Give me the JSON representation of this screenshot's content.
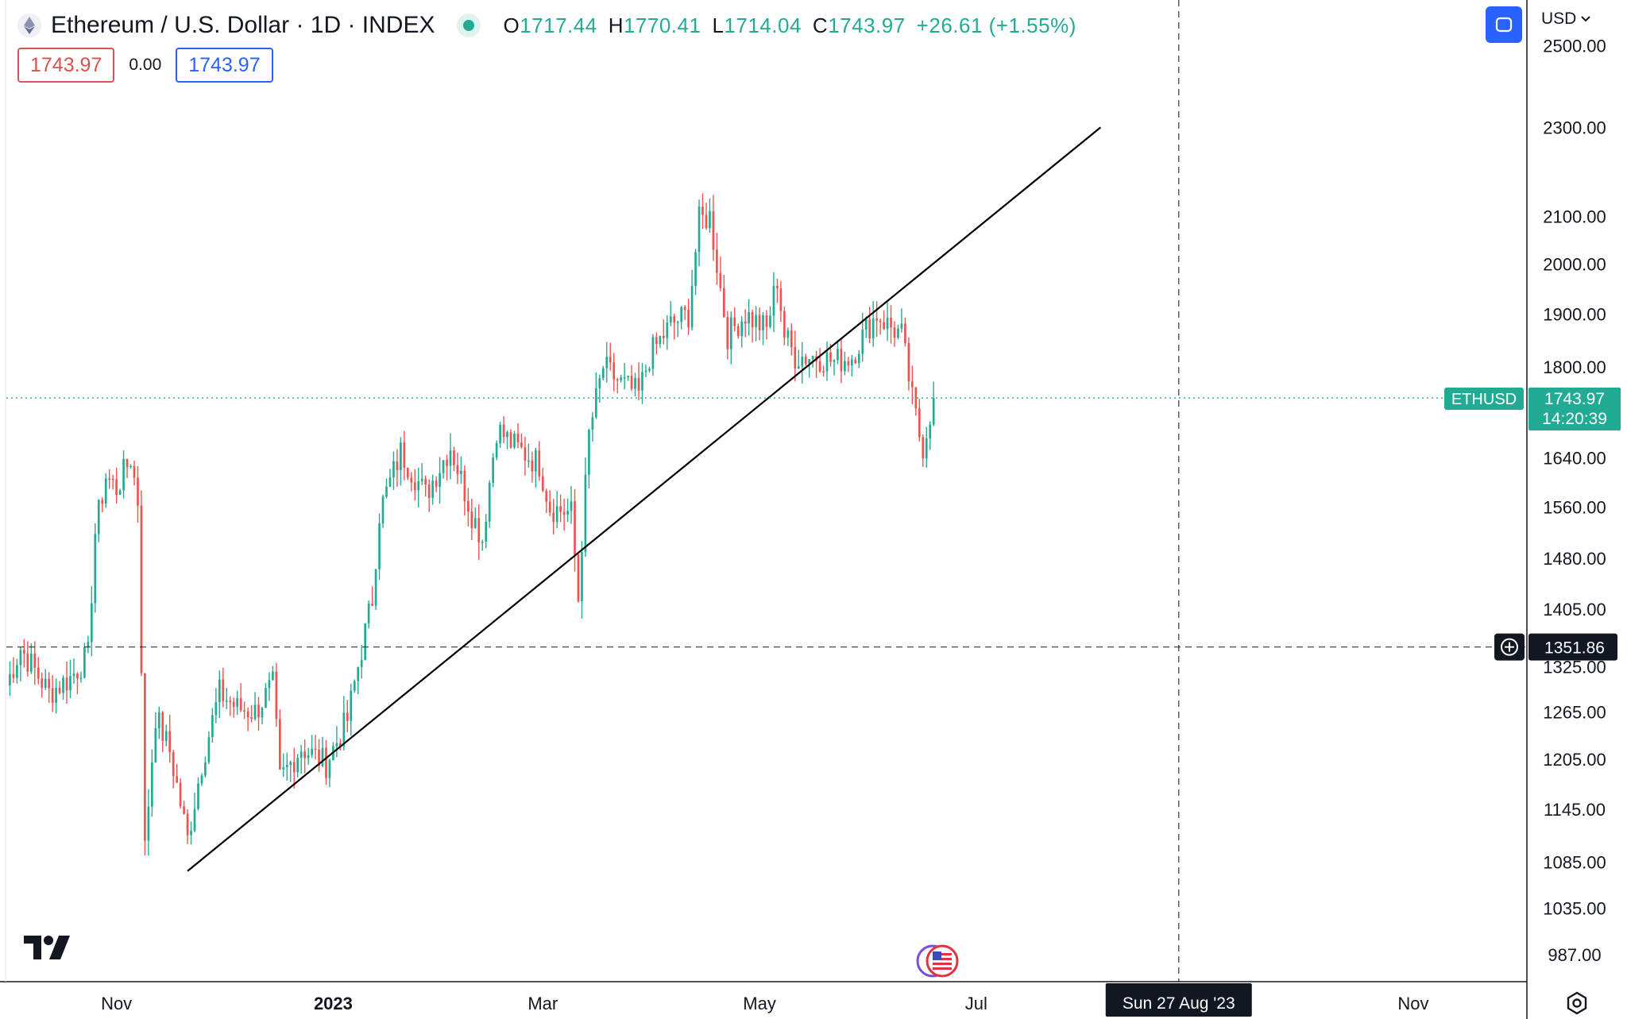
{
  "header": {
    "title": "Ethereum / U.S. Dollar · 1D · INDEX",
    "open_label": "O",
    "open": "1717.44",
    "high_label": "H",
    "high": "1770.41",
    "low_label": "L",
    "low": "1714.04",
    "close_label": "C",
    "close": "1743.97",
    "change": "+26.61 (+1.55%)"
  },
  "trade": {
    "sell_price": "1743.97",
    "spread": "0.00",
    "buy_price": "1743.97"
  },
  "currency_label": "USD",
  "colors": {
    "up": "#22ab94",
    "down": "#ef5350",
    "accent": "#2962ff",
    "crosshair": "#131722"
  },
  "icons": [
    "ethereum-icon",
    "fullscreen-icon",
    "chevron-down-icon",
    "tradingview-logo",
    "us-flag-icon",
    "settings-icon",
    "plus-circle-icon"
  ],
  "chart_data": {
    "type": "candlestick",
    "symbol": "ETHUSD",
    "interval": "1D",
    "scale": "log",
    "ylim": [
      960,
      2620
    ],
    "x_range": [
      "2022-10-01",
      "2023-12-03"
    ],
    "y_ticks": [
      "987.00",
      "1035.00",
      "1085.00",
      "1145.00",
      "1205.00",
      "1265.00",
      "1325.00",
      "1405.00",
      "1480.00",
      "1560.00",
      "1640.00",
      "1800.00",
      "1900.00",
      "2000.00",
      "2100.00",
      "2300.00",
      "2500.00"
    ],
    "x_ticks": [
      {
        "label": "Nov",
        "date": "2022-11-01"
      },
      {
        "label": "2023",
        "date": "2023-01-01"
      },
      {
        "label": "Mar",
        "date": "2023-03-01"
      },
      {
        "label": "May",
        "date": "2023-05-01"
      },
      {
        "label": "Jul",
        "date": "2023-07-01"
      },
      {
        "label": "Nov",
        "date": "2023-11-01"
      }
    ],
    "last_price": {
      "symbol_label": "ETHUSD",
      "price": "1743.97",
      "countdown": "14:20:39",
      "value": 1743.97
    },
    "crosshair": {
      "price_label": "1351.86",
      "price": 1351.86,
      "date_label": "Sun 27 Aug '23",
      "date": "2023-08-27"
    },
    "trendline": {
      "start": {
        "date": "2022-11-21",
        "price": 1075
      },
      "end": {
        "date": "2023-08-05",
        "price": 2300
      }
    },
    "anchors": [
      [
        "2022-10-01",
        1300
      ],
      [
        "2022-10-05",
        1350
      ],
      [
        "2022-10-09",
        1320
      ],
      [
        "2022-10-13",
        1290
      ],
      [
        "2022-10-19",
        1310
      ],
      [
        "2022-10-24",
        1340
      ],
      [
        "2022-10-26",
        1520
      ],
      [
        "2022-10-29",
        1610
      ],
      [
        "2022-11-01",
        1590
      ],
      [
        "2022-11-05",
        1640
      ],
      [
        "2022-11-07",
        1570
      ],
      [
        "2022-11-08",
        1330
      ],
      [
        "2022-11-09",
        1100
      ],
      [
        "2022-11-12",
        1260
      ],
      [
        "2022-11-16",
        1215
      ],
      [
        "2022-11-21",
        1110
      ],
      [
        "2022-11-25",
        1200
      ],
      [
        "2022-11-30",
        1290
      ],
      [
        "2022-12-05",
        1270
      ],
      [
        "2022-12-10",
        1265
      ],
      [
        "2022-12-15",
        1300
      ],
      [
        "2022-12-17",
        1180
      ],
      [
        "2022-12-23",
        1220
      ],
      [
        "2022-12-30",
        1200
      ],
      [
        "2023-01-05",
        1255
      ],
      [
        "2023-01-12",
        1420
      ],
      [
        "2023-01-14",
        1550
      ],
      [
        "2023-01-20",
        1650
      ],
      [
        "2023-01-27",
        1580
      ],
      [
        "2023-02-03",
        1660
      ],
      [
        "2023-02-09",
        1550
      ],
      [
        "2023-02-12",
        1510
      ],
      [
        "2023-02-16",
        1690
      ],
      [
        "2023-02-21",
        1660
      ],
      [
        "2023-02-28",
        1630
      ],
      [
        "2023-03-03",
        1560
      ],
      [
        "2023-03-09",
        1550
      ],
      [
        "2023-03-11",
        1420
      ],
      [
        "2023-03-14",
        1680
      ],
      [
        "2023-03-18",
        1800
      ],
      [
        "2023-03-23",
        1770
      ],
      [
        "2023-03-28",
        1750
      ],
      [
        "2023-03-31",
        1820
      ],
      [
        "2023-04-06",
        1880
      ],
      [
        "2023-04-11",
        1900
      ],
      [
        "2023-04-14",
        2090
      ],
      [
        "2023-04-17",
        2100
      ],
      [
        "2023-04-20",
        1950
      ],
      [
        "2023-04-22",
        1860
      ],
      [
        "2023-04-27",
        1900
      ],
      [
        "2023-05-03",
        1870
      ],
      [
        "2023-05-06",
        1970
      ],
      [
        "2023-05-08",
        1860
      ],
      [
        "2023-05-11",
        1820
      ],
      [
        "2023-05-17",
        1820
      ],
      [
        "2023-05-22",
        1810
      ],
      [
        "2023-05-27",
        1820
      ],
      [
        "2023-05-31",
        1870
      ],
      [
        "2023-06-03",
        1900
      ],
      [
        "2023-06-06",
        1880
      ],
      [
        "2023-06-10",
        1860
      ],
      [
        "2023-06-13",
        1740
      ],
      [
        "2023-06-15",
        1680
      ],
      [
        "2023-06-16",
        1660
      ],
      [
        "2023-06-19",
        1743.97
      ]
    ]
  }
}
